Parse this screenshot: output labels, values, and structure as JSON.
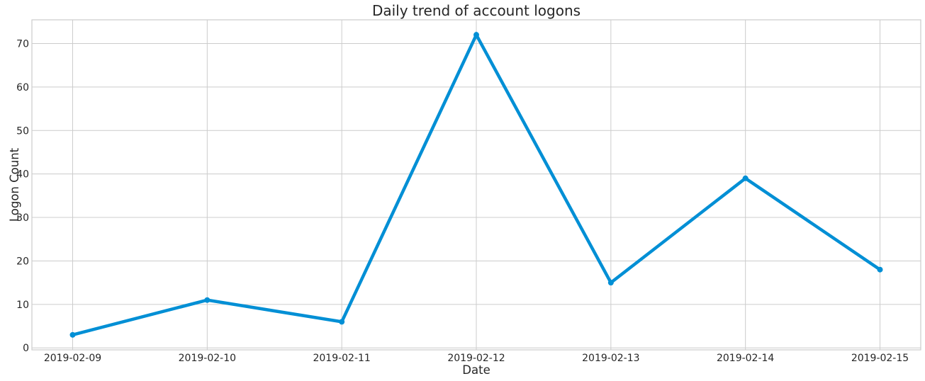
{
  "chart_data": {
    "type": "line",
    "title": "Daily trend of account logons",
    "xlabel": "Date",
    "ylabel": "Logon Count",
    "x": [
      "2019-02-09",
      "2019-02-10",
      "2019-02-11",
      "2019-02-12",
      "2019-02-13",
      "2019-02-14",
      "2019-02-15"
    ],
    "series": [
      {
        "values": [
          3,
          11,
          6,
          72,
          15,
          39,
          18
        ],
        "color": "#008fd5"
      }
    ],
    "yticks": [
      0,
      10,
      20,
      30,
      40,
      50,
      60,
      70
    ],
    "ylim": [
      -0.45,
      75.45
    ],
    "grid": true,
    "legend": "none"
  }
}
